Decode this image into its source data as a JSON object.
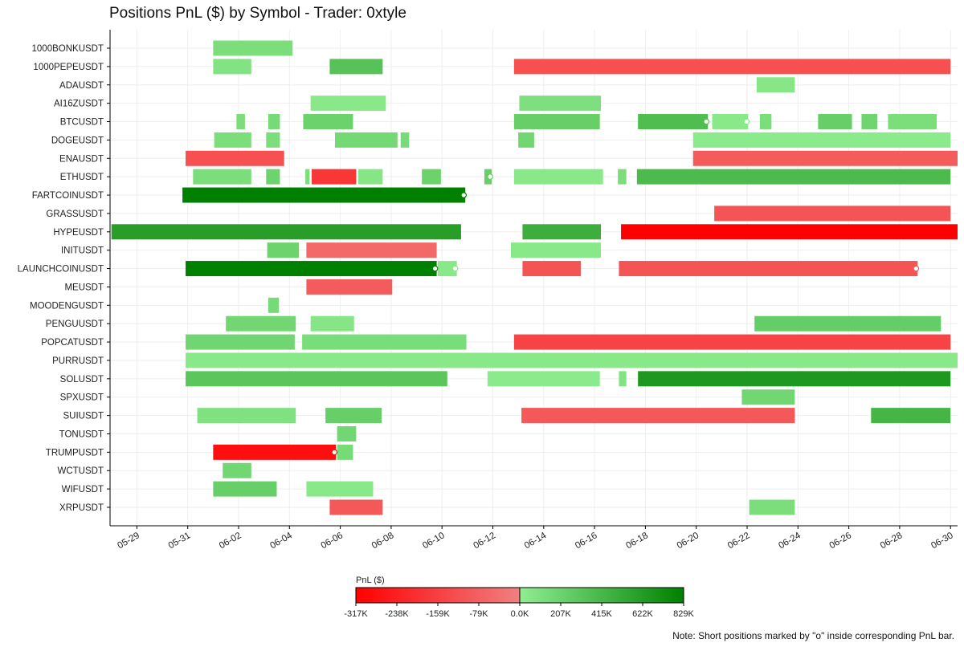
{
  "chart_data": {
    "type": "gantt",
    "title": "Positions PnL ($) by Symbol - Trader: 0xtyle",
    "x_axis": {
      "type": "date",
      "range": [
        "2025-05-28",
        "2025-06-30"
      ],
      "ticks": [
        "2025-05-29",
        "2025-05-31",
        "2025-06-02",
        "2025-06-04",
        "2025-06-06",
        "2025-06-08",
        "2025-06-10",
        "2025-06-12",
        "2025-06-14",
        "2025-06-16",
        "2025-06-18",
        "2025-06-20",
        "2025-06-22",
        "2025-06-24",
        "2025-06-26",
        "2025-06-28",
        "2025-06-30"
      ],
      "tick_labels": [
        "05-29",
        "05-31",
        "06-02",
        "06-04",
        "06-06",
        "06-08",
        "06-10",
        "06-12",
        "06-14",
        "06-16",
        "06-18",
        "06-20",
        "06-22",
        "06-24",
        "06-26",
        "06-28",
        "06-30"
      ]
    },
    "grid": true,
    "categories": [
      "1000BONKUSDT",
      "1000PEPEUSDT",
      "ADAUSDT",
      "AI16ZUSDT",
      "BTCUSDT",
      "DOGEUSDT",
      "ENAUSDT",
      "ETHUSDT",
      "FARTCOINUSDT",
      "GRASSUSDT",
      "HYPEUSDT",
      "INITUSDT",
      "LAUNCHCOINUSDT",
      "MEUSDT",
      "MOODENGUSDT",
      "PENGUUSDT",
      "POPCATUSDT",
      "PURRUSDT",
      "SOLUSDT",
      "SPXUSDT",
      "SUIUSDT",
      "TONUSDT",
      "TRUMPUSDT",
      "WCTUSDT",
      "WIFUSDT",
      "XRPUSDT"
    ],
    "colorbar": {
      "label": "PnL ($)",
      "min": -317000,
      "max": 829000,
      "tick_values": [
        -317000,
        -238000,
        -159000,
        -79000,
        0,
        207000,
        415000,
        622000,
        829000
      ],
      "tick_labels": [
        "-317K",
        "-238K",
        "-159K",
        "-79K",
        "0.0K",
        "207K",
        "415K",
        "622K",
        "829K"
      ],
      "neg_colors": [
        "#ff0000",
        "#f08080"
      ],
      "pos_colors": [
        "#90ee90",
        "#008000"
      ]
    },
    "positions": [
      {
        "symbol": "1000BONKUSDT",
        "start": "2025-06-01T00:00",
        "end": "2025-06-04T03:00",
        "pnl": 120000
      },
      {
        "symbol": "1000PEPEUSDT",
        "start": "2025-06-01T00:00",
        "end": "2025-06-02T12:00",
        "pnl": 80000
      },
      {
        "symbol": "1000PEPEUSDT",
        "start": "2025-06-05T14:00",
        "end": "2025-06-07T16:00",
        "pnl": 330000
      },
      {
        "symbol": "1000PEPEUSDT",
        "start": "2025-06-12T20:00",
        "end": "2025-06-30T00:00",
        "pnl": -120000
      },
      {
        "symbol": "ADAUSDT",
        "start": "2025-06-22T09:00",
        "end": "2025-06-23T21:00",
        "pnl": 50000
      },
      {
        "symbol": "AI16ZUSDT",
        "start": "2025-06-04T20:00",
        "end": "2025-06-07T19:00",
        "pnl": 40000
      },
      {
        "symbol": "AI16ZUSDT",
        "start": "2025-06-13T01:00",
        "end": "2025-06-16T06:00",
        "pnl": 110000
      },
      {
        "symbol": "BTCUSDT",
        "start": "2025-06-01T22:00",
        "end": "2025-06-02T06:00",
        "pnl": 120000
      },
      {
        "symbol": "BTCUSDT",
        "start": "2025-06-03T04:00",
        "end": "2025-06-03T15:00",
        "pnl": 150000
      },
      {
        "symbol": "BTCUSDT",
        "start": "2025-06-04T13:00",
        "end": "2025-06-06T12:00",
        "pnl": 210000
      },
      {
        "symbol": "BTCUSDT",
        "start": "2025-06-12T20:00",
        "end": "2025-06-16T05:00",
        "pnl": 230000
      },
      {
        "symbol": "BTCUSDT",
        "start": "2025-06-17T17:00",
        "end": "2025-06-20T11:00",
        "pnl": 370000,
        "short": true
      },
      {
        "symbol": "BTCUSDT",
        "start": "2025-06-20T15:00",
        "end": "2025-06-22T01:00",
        "pnl": 40000,
        "short": true
      },
      {
        "symbol": "BTCUSDT",
        "start": "2025-06-22T12:00",
        "end": "2025-06-22T23:00",
        "pnl": 120000
      },
      {
        "symbol": "BTCUSDT",
        "start": "2025-06-24T19:00",
        "end": "2025-06-26T03:00",
        "pnl": 230000
      },
      {
        "symbol": "BTCUSDT",
        "start": "2025-06-26T12:00",
        "end": "2025-06-27T03:00",
        "pnl": 190000
      },
      {
        "symbol": "BTCUSDT",
        "start": "2025-06-27T13:00",
        "end": "2025-06-29T11:00",
        "pnl": 120000
      },
      {
        "symbol": "DOGEUSDT",
        "start": "2025-06-01T01:00",
        "end": "2025-06-02T12:00",
        "pnl": 120000
      },
      {
        "symbol": "DOGEUSDT",
        "start": "2025-06-03T02:00",
        "end": "2025-06-03T15:00",
        "pnl": 120000
      },
      {
        "symbol": "DOGEUSDT",
        "start": "2025-06-05T19:00",
        "end": "2025-06-08T06:00",
        "pnl": 160000
      },
      {
        "symbol": "DOGEUSDT",
        "start": "2025-06-08T09:00",
        "end": "2025-06-08T17:00",
        "pnl": 140000
      },
      {
        "symbol": "DOGEUSDT",
        "start": "2025-06-13T00:00",
        "end": "2025-06-13T15:00",
        "pnl": 170000
      },
      {
        "symbol": "DOGEUSDT",
        "start": "2025-06-19T21:00",
        "end": "2025-06-30T00:00",
        "pnl": 30000
      },
      {
        "symbol": "ENAUSDT",
        "start": "2025-05-30T22:00",
        "end": "2025-06-03T19:00",
        "pnl": -120000
      },
      {
        "symbol": "ENAUSDT",
        "start": "2025-06-19T21:00",
        "end": "2025-06-30T08:00",
        "pnl": -90000
      },
      {
        "symbol": "ETHUSDT",
        "start": "2025-05-31T05:00",
        "end": "2025-06-02T12:00",
        "pnl": 120000
      },
      {
        "symbol": "ETHUSDT",
        "start": "2025-06-03T02:00",
        "end": "2025-06-03T15:00",
        "pnl": 200000
      },
      {
        "symbol": "ETHUSDT",
        "start": "2025-06-04T15:00",
        "end": "2025-06-04T19:00",
        "pnl": 120000
      },
      {
        "symbol": "ETHUSDT",
        "start": "2025-06-04T21:00",
        "end": "2025-06-06T15:00",
        "pnl": -180000
      },
      {
        "symbol": "ETHUSDT",
        "start": "2025-06-06T17:00",
        "end": "2025-06-07T16:00",
        "pnl": 60000
      },
      {
        "symbol": "ETHUSDT",
        "start": "2025-06-09T05:00",
        "end": "2025-06-09T23:00",
        "pnl": 210000
      },
      {
        "symbol": "ETHUSDT",
        "start": "2025-06-11T16:00",
        "end": "2025-06-11T23:00",
        "pnl": 230000,
        "short": true
      },
      {
        "symbol": "ETHUSDT",
        "start": "2025-06-12T20:00",
        "end": "2025-06-16T08:00",
        "pnl": 40000
      },
      {
        "symbol": "ETHUSDT",
        "start": "2025-06-16T22:00",
        "end": "2025-06-17T06:00",
        "pnl": 120000
      },
      {
        "symbol": "ETHUSDT",
        "start": "2025-06-17T16:00",
        "end": "2025-06-30T00:00",
        "pnl": 390000
      },
      {
        "symbol": "FARTCOINUSDT",
        "start": "2025-05-30T19:00",
        "end": "2025-06-10T22:00",
        "pnl": 829000,
        "short": true
      },
      {
        "symbol": "GRASSUSDT",
        "start": "2025-06-20T17:00",
        "end": "2025-06-30T00:00",
        "pnl": -110000
      },
      {
        "symbol": "HYPEUSDT",
        "start": "2025-05-28T00:00",
        "end": "2025-06-10T18:00",
        "pnl": 600000
      },
      {
        "symbol": "HYPEUSDT",
        "start": "2025-06-13T04:00",
        "end": "2025-06-16T06:00",
        "pnl": 480000
      },
      {
        "symbol": "HYPEUSDT",
        "start": "2025-06-17T01:00",
        "end": "2025-06-30T08:00",
        "pnl": -317000
      },
      {
        "symbol": "INITUSDT",
        "start": "2025-06-03T03:00",
        "end": "2025-06-04T09:00",
        "pnl": 200000
      },
      {
        "symbol": "INITUSDT",
        "start": "2025-06-04T16:00",
        "end": "2025-06-09T19:00",
        "pnl": -60000
      },
      {
        "symbol": "INITUSDT",
        "start": "2025-06-12T17:00",
        "end": "2025-06-16T06:00",
        "pnl": 40000
      },
      {
        "symbol": "LAUNCHCOINUSDT",
        "start": "2025-05-30T22:00",
        "end": "2025-06-09T19:00",
        "pnl": 829000,
        "short": true
      },
      {
        "symbol": "LAUNCHCOINUSDT",
        "start": "2025-06-09T20:00",
        "end": "2025-06-10T14:00",
        "pnl": 40000,
        "short": true
      },
      {
        "symbol": "LAUNCHCOINUSDT",
        "start": "2025-06-13T04:00",
        "end": "2025-06-15T11:00",
        "pnl": -110000
      },
      {
        "symbol": "LAUNCHCOINUSDT",
        "start": "2025-06-16T23:00",
        "end": "2025-06-28T17:00",
        "pnl": -110000,
        "short": true
      },
      {
        "symbol": "MEUSDT",
        "start": "2025-06-04T16:00",
        "end": "2025-06-08T01:00",
        "pnl": -90000
      },
      {
        "symbol": "MOODENGUSDT",
        "start": "2025-06-03T04:00",
        "end": "2025-06-03T14:00",
        "pnl": 150000
      },
      {
        "symbol": "PENGUUSDT",
        "start": "2025-06-01T12:00",
        "end": "2025-06-04T06:00",
        "pnl": 170000
      },
      {
        "symbol": "PENGUUSDT",
        "start": "2025-06-04T20:00",
        "end": "2025-06-06T13:00",
        "pnl": 60000
      },
      {
        "symbol": "PENGUUSDT",
        "start": "2025-06-22T07:00",
        "end": "2025-06-29T15:00",
        "pnl": 250000
      },
      {
        "symbol": "POPCATUSDT",
        "start": "2025-05-30T22:00",
        "end": "2025-06-04T05:00",
        "pnl": 180000
      },
      {
        "symbol": "POPCATUSDT",
        "start": "2025-06-04T12:00",
        "end": "2025-06-10T23:00",
        "pnl": 130000
      },
      {
        "symbol": "POPCATUSDT",
        "start": "2025-06-12T20:00",
        "end": "2025-06-30T00:00",
        "pnl": -150000
      },
      {
        "symbol": "PURRUSDT",
        "start": "2025-05-30T22:00",
        "end": "2025-06-30T08:00",
        "pnl": 40000
      },
      {
        "symbol": "SOLUSDT",
        "start": "2025-05-30T22:00",
        "end": "2025-06-10T05:00",
        "pnl": 300000
      },
      {
        "symbol": "SOLUSDT",
        "start": "2025-06-11T19:00",
        "end": "2025-06-16T05:00",
        "pnl": 30000
      },
      {
        "symbol": "SOLUSDT",
        "start": "2025-06-16T23:00",
        "end": "2025-06-17T06:00",
        "pnl": 80000
      },
      {
        "symbol": "SOLUSDT",
        "start": "2025-06-17T17:00",
        "end": "2025-06-30T00:00",
        "pnl": 650000
      },
      {
        "symbol": "SPXUSDT",
        "start": "2025-06-21T19:00",
        "end": "2025-06-23T21:00",
        "pnl": 170000
      },
      {
        "symbol": "SUIUSDT",
        "start": "2025-05-31T09:00",
        "end": "2025-06-04T06:00",
        "pnl": 100000
      },
      {
        "symbol": "SUIUSDT",
        "start": "2025-06-05T10:00",
        "end": "2025-06-07T15:00",
        "pnl": 230000
      },
      {
        "symbol": "SUIUSDT",
        "start": "2025-06-13T03:00",
        "end": "2025-06-23T21:00",
        "pnl": -100000
      },
      {
        "symbol": "SUIUSDT",
        "start": "2025-06-26T21:00",
        "end": "2025-06-30T00:00",
        "pnl": 430000
      },
      {
        "symbol": "TONUSDT",
        "start": "2025-06-05T21:00",
        "end": "2025-06-06T15:00",
        "pnl": 170000
      },
      {
        "symbol": "TRUMPUSDT",
        "start": "2025-06-01T00:00",
        "end": "2025-06-05T20:00",
        "pnl": -280000,
        "short": true
      },
      {
        "symbol": "TRUMPUSDT",
        "start": "2025-06-05T21:00",
        "end": "2025-06-06T12:00",
        "pnl": 150000
      },
      {
        "symbol": "WCTUSDT",
        "start": "2025-06-01T09:00",
        "end": "2025-06-02T12:00",
        "pnl": 170000
      },
      {
        "symbol": "WIFUSDT",
        "start": "2025-06-01T00:00",
        "end": "2025-06-03T12:00",
        "pnl": 230000
      },
      {
        "symbol": "WIFUSDT",
        "start": "2025-06-04T16:00",
        "end": "2025-06-07T07:00",
        "pnl": 40000
      },
      {
        "symbol": "XRPUSDT",
        "start": "2025-06-05T14:00",
        "end": "2025-06-07T16:00",
        "pnl": -100000
      },
      {
        "symbol": "XRPUSDT",
        "start": "2025-06-22T02:00",
        "end": "2025-06-23T21:00",
        "pnl": 120000
      }
    ]
  },
  "footnote": "Note: Short positions marked by \"o\" inside corresponding PnL bar."
}
